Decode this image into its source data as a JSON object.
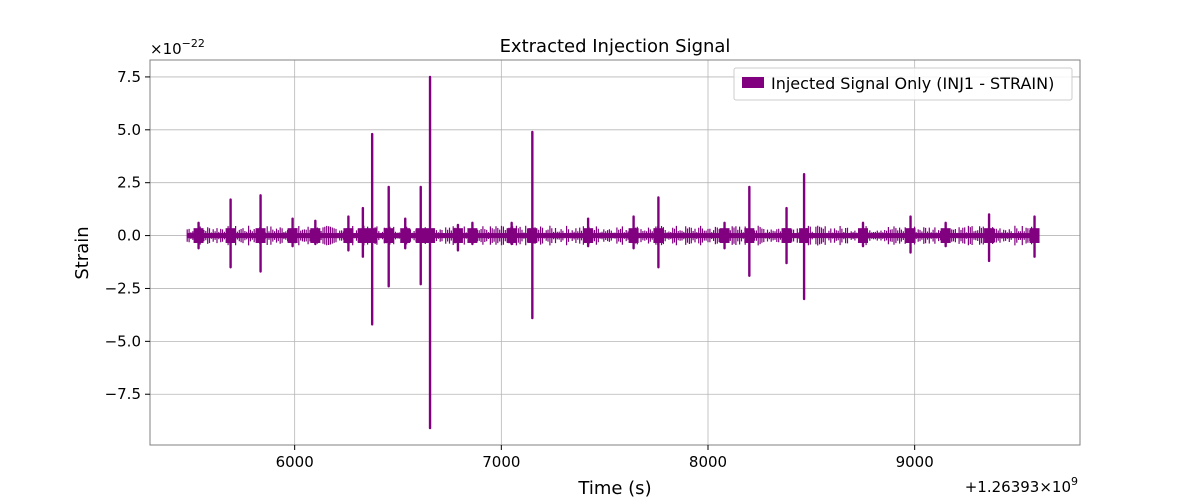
{
  "chart_data": {
    "type": "line",
    "title": "Extracted Injection Signal",
    "xlabel": "Time (s)",
    "ylabel": "Strain",
    "x_offset_label": "+1.26393×10",
    "x_offset_exponent": "9",
    "y_scale_label": "×10",
    "y_scale_exponent": "−22",
    "xlim": [
      5300,
      9800
    ],
    "ylim": [
      -9.9,
      8.3
    ],
    "x_ticks": [
      6000,
      7000,
      8000,
      9000
    ],
    "x_tick_labels": [
      "6000",
      "7000",
      "8000",
      "9000"
    ],
    "y_ticks": [
      7.5,
      5.0,
      2.5,
      0.0,
      -2.5,
      -5.0,
      -7.5
    ],
    "y_tick_labels": [
      "7.5",
      "5.0",
      "2.5",
      "0.0",
      "−2.5",
      "−5.0",
      "−7.5"
    ],
    "grid": true,
    "legend_position": "top-right",
    "series": [
      {
        "name": "Injected Signal Only (INJ1 - STRAIN)",
        "color": "#800080",
        "x_range": [
          5480,
          9590
        ],
        "baseline_amplitude": 0.12,
        "spikes": [
          {
            "x": 5535,
            "max": 0.6,
            "min": -0.6
          },
          {
            "x": 5690,
            "max": 1.7,
            "min": -1.5
          },
          {
            "x": 5835,
            "max": 1.9,
            "min": -1.7
          },
          {
            "x": 5990,
            "max": 0.8,
            "min": -0.5
          },
          {
            "x": 6100,
            "max": 0.7,
            "min": -0.4
          },
          {
            "x": 6260,
            "max": 0.9,
            "min": -0.7
          },
          {
            "x": 6330,
            "max": 1.3,
            "min": -1.0
          },
          {
            "x": 6375,
            "max": 4.8,
            "min": -4.2
          },
          {
            "x": 6455,
            "max": 2.3,
            "min": -2.4
          },
          {
            "x": 6535,
            "max": 0.8,
            "min": -0.6
          },
          {
            "x": 6610,
            "max": 2.3,
            "min": -2.3
          },
          {
            "x": 6655,
            "max": 7.5,
            "min": -9.1
          },
          {
            "x": 6790,
            "max": 0.5,
            "min": -0.7
          },
          {
            "x": 6860,
            "max": 0.6,
            "min": -0.4
          },
          {
            "x": 7050,
            "max": 0.6,
            "min": -0.4
          },
          {
            "x": 7150,
            "max": 4.9,
            "min": -3.9
          },
          {
            "x": 7420,
            "max": 0.8,
            "min": -0.5
          },
          {
            "x": 7640,
            "max": 0.9,
            "min": -0.6
          },
          {
            "x": 7760,
            "max": 1.8,
            "min": -1.5
          },
          {
            "x": 8080,
            "max": 0.6,
            "min": -0.6
          },
          {
            "x": 8200,
            "max": 2.3,
            "min": -1.9
          },
          {
            "x": 8380,
            "max": 1.3,
            "min": -1.3
          },
          {
            "x": 8465,
            "max": 2.9,
            "min": -3.0
          },
          {
            "x": 8750,
            "max": 0.6,
            "min": -0.5
          },
          {
            "x": 8980,
            "max": 0.9,
            "min": -0.8
          },
          {
            "x": 9150,
            "max": 0.6,
            "min": -0.5
          },
          {
            "x": 9360,
            "max": 1.0,
            "min": -1.2
          },
          {
            "x": 9580,
            "max": 0.9,
            "min": -1.0
          }
        ]
      }
    ]
  }
}
